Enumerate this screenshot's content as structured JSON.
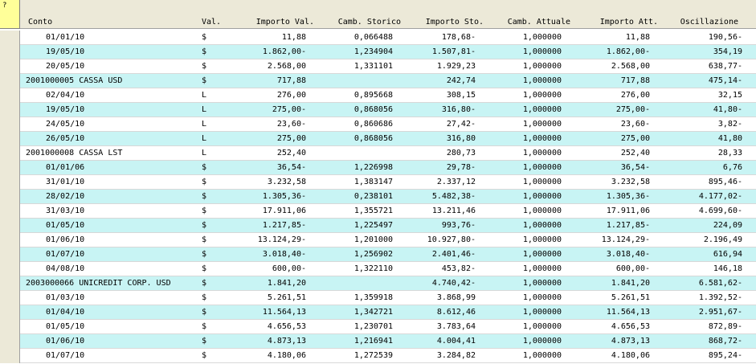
{
  "corner_label": "?",
  "columns": {
    "conto": "Conto",
    "val": "Val.",
    "importo_val": "Importo Val.",
    "camb_storico": "Camb. Storico",
    "importo_sto": "Importo Sto.",
    "camb_attuale": "Camb. Attuale",
    "importo_att": "Importo Att.",
    "oscillazione": "Oscillazione"
  },
  "rows": [
    {
      "type": "entry",
      "conto": "01/01/10",
      "val": "$",
      "importo_val": "11,88",
      "camb_storico": "0,066488",
      "importo_sto": "178,68-",
      "camb_attuale": "1,000000",
      "importo_att": "11,88",
      "oscillazione": "190,56-"
    },
    {
      "type": "entry",
      "conto": "19/05/10",
      "val": "$",
      "importo_val": "1.862,00-",
      "camb_storico": "1,234904",
      "importo_sto": "1.507,81-",
      "camb_attuale": "1,000000",
      "importo_att": "1.862,00-",
      "oscillazione": "354,19"
    },
    {
      "type": "entry",
      "conto": "20/05/10",
      "val": "$",
      "importo_val": "2.568,00",
      "camb_storico": "1,331101",
      "importo_sto": "1.929,23",
      "camb_attuale": "1,000000",
      "importo_att": "2.568,00",
      "oscillazione": "638,77-"
    },
    {
      "type": "account",
      "conto": "2001000005 CASSA USD",
      "val": "$",
      "importo_val": "717,88",
      "camb_storico": "",
      "importo_sto": "242,74",
      "camb_attuale": "1,000000",
      "importo_att": "717,88",
      "oscillazione": "475,14-"
    },
    {
      "type": "entry",
      "conto": "02/04/10",
      "val": "L",
      "importo_val": "276,00",
      "camb_storico": "0,895668",
      "importo_sto": "308,15",
      "camb_attuale": "1,000000",
      "importo_att": "276,00",
      "oscillazione": "32,15"
    },
    {
      "type": "entry",
      "conto": "19/05/10",
      "val": "L",
      "importo_val": "275,00-",
      "camb_storico": "0,868056",
      "importo_sto": "316,80-",
      "camb_attuale": "1,000000",
      "importo_att": "275,00-",
      "oscillazione": "41,80-"
    },
    {
      "type": "entry",
      "conto": "24/05/10",
      "val": "L",
      "importo_val": "23,60-",
      "camb_storico": "0,860686",
      "importo_sto": "27,42-",
      "camb_attuale": "1,000000",
      "importo_att": "23,60-",
      "oscillazione": "3,82-"
    },
    {
      "type": "entry",
      "conto": "26/05/10",
      "val": "L",
      "importo_val": "275,00",
      "camb_storico": "0,868056",
      "importo_sto": "316,80",
      "camb_attuale": "1,000000",
      "importo_att": "275,00",
      "oscillazione": "41,80"
    },
    {
      "type": "account",
      "conto": "2001000008 CASSA LST",
      "val": "L",
      "importo_val": "252,40",
      "camb_storico": "",
      "importo_sto": "280,73",
      "camb_attuale": "1,000000",
      "importo_att": "252,40",
      "oscillazione": "28,33"
    },
    {
      "type": "entry",
      "conto": "01/01/06",
      "val": "$",
      "importo_val": "36,54-",
      "camb_storico": "1,226998",
      "importo_sto": "29,78-",
      "camb_attuale": "1,000000",
      "importo_att": "36,54-",
      "oscillazione": "6,76"
    },
    {
      "type": "entry",
      "conto": "31/01/10",
      "val": "$",
      "importo_val": "3.232,58",
      "camb_storico": "1,383147",
      "importo_sto": "2.337,12",
      "camb_attuale": "1,000000",
      "importo_att": "3.232,58",
      "oscillazione": "895,46-"
    },
    {
      "type": "entry",
      "conto": "28/02/10",
      "val": "$",
      "importo_val": "1.305,36-",
      "camb_storico": "0,238101",
      "importo_sto": "5.482,38-",
      "camb_attuale": "1,000000",
      "importo_att": "1.305,36-",
      "oscillazione": "4.177,02-"
    },
    {
      "type": "entry",
      "conto": "31/03/10",
      "val": "$",
      "importo_val": "17.911,06",
      "camb_storico": "1,355721",
      "importo_sto": "13.211,46",
      "camb_attuale": "1,000000",
      "importo_att": "17.911,06",
      "oscillazione": "4.699,60-"
    },
    {
      "type": "entry",
      "conto": "01/05/10",
      "val": "$",
      "importo_val": "1.217,85-",
      "camb_storico": "1,225497",
      "importo_sto": "993,76-",
      "camb_attuale": "1,000000",
      "importo_att": "1.217,85-",
      "oscillazione": "224,09"
    },
    {
      "type": "entry",
      "conto": "01/06/10",
      "val": "$",
      "importo_val": "13.124,29-",
      "camb_storico": "1,201000",
      "importo_sto": "10.927,80-",
      "camb_attuale": "1,000000",
      "importo_att": "13.124,29-",
      "oscillazione": "2.196,49"
    },
    {
      "type": "entry",
      "conto": "01/07/10",
      "val": "$",
      "importo_val": "3.018,40-",
      "camb_storico": "1,256902",
      "importo_sto": "2.401,46-",
      "camb_attuale": "1,000000",
      "importo_att": "3.018,40-",
      "oscillazione": "616,94"
    },
    {
      "type": "entry",
      "conto": "04/08/10",
      "val": "$",
      "importo_val": "600,00-",
      "camb_storico": "1,322110",
      "importo_sto": "453,82-",
      "camb_attuale": "1,000000",
      "importo_att": "600,00-",
      "oscillazione": "146,18"
    },
    {
      "type": "account",
      "conto": "2003000066 UNICREDIT CORP. USD",
      "val": "$",
      "importo_val": "1.841,20",
      "camb_storico": "",
      "importo_sto": "4.740,42-",
      "camb_attuale": "1,000000",
      "importo_att": "1.841,20",
      "oscillazione": "6.581,62-"
    },
    {
      "type": "entry",
      "conto": "01/03/10",
      "val": "$",
      "importo_val": "5.261,51",
      "camb_storico": "1,359918",
      "importo_sto": "3.868,99",
      "camb_attuale": "1,000000",
      "importo_att": "5.261,51",
      "oscillazione": "1.392,52-"
    },
    {
      "type": "entry",
      "conto": "01/04/10",
      "val": "$",
      "importo_val": "11.564,13",
      "camb_storico": "1,342721",
      "importo_sto": "8.612,46",
      "camb_attuale": "1,000000",
      "importo_att": "11.564,13",
      "oscillazione": "2.951,67-"
    },
    {
      "type": "entry",
      "conto": "01/05/10",
      "val": "$",
      "importo_val": "4.656,53",
      "camb_storico": "1,230701",
      "importo_sto": "3.783,64",
      "camb_attuale": "1,000000",
      "importo_att": "4.656,53",
      "oscillazione": "872,89-"
    },
    {
      "type": "entry",
      "conto": "01/06/10",
      "val": "$",
      "importo_val": "4.873,13",
      "camb_storico": "1,216941",
      "importo_sto": "4.004,41",
      "camb_attuale": "1,000000",
      "importo_att": "4.873,13",
      "oscillazione": "868,72-"
    },
    {
      "type": "entry",
      "conto": "01/07/10",
      "val": "$",
      "importo_val": "4.180,06",
      "camb_storico": "1,272539",
      "importo_sto": "3.284,82",
      "camb_attuale": "1,000000",
      "importo_att": "4.180,06",
      "oscillazione": "895,24-"
    }
  ],
  "colors": {
    "row_alt": "#c8f4f4",
    "header_bg": "#ece9d8",
    "corner_bg": "#ffff99"
  }
}
